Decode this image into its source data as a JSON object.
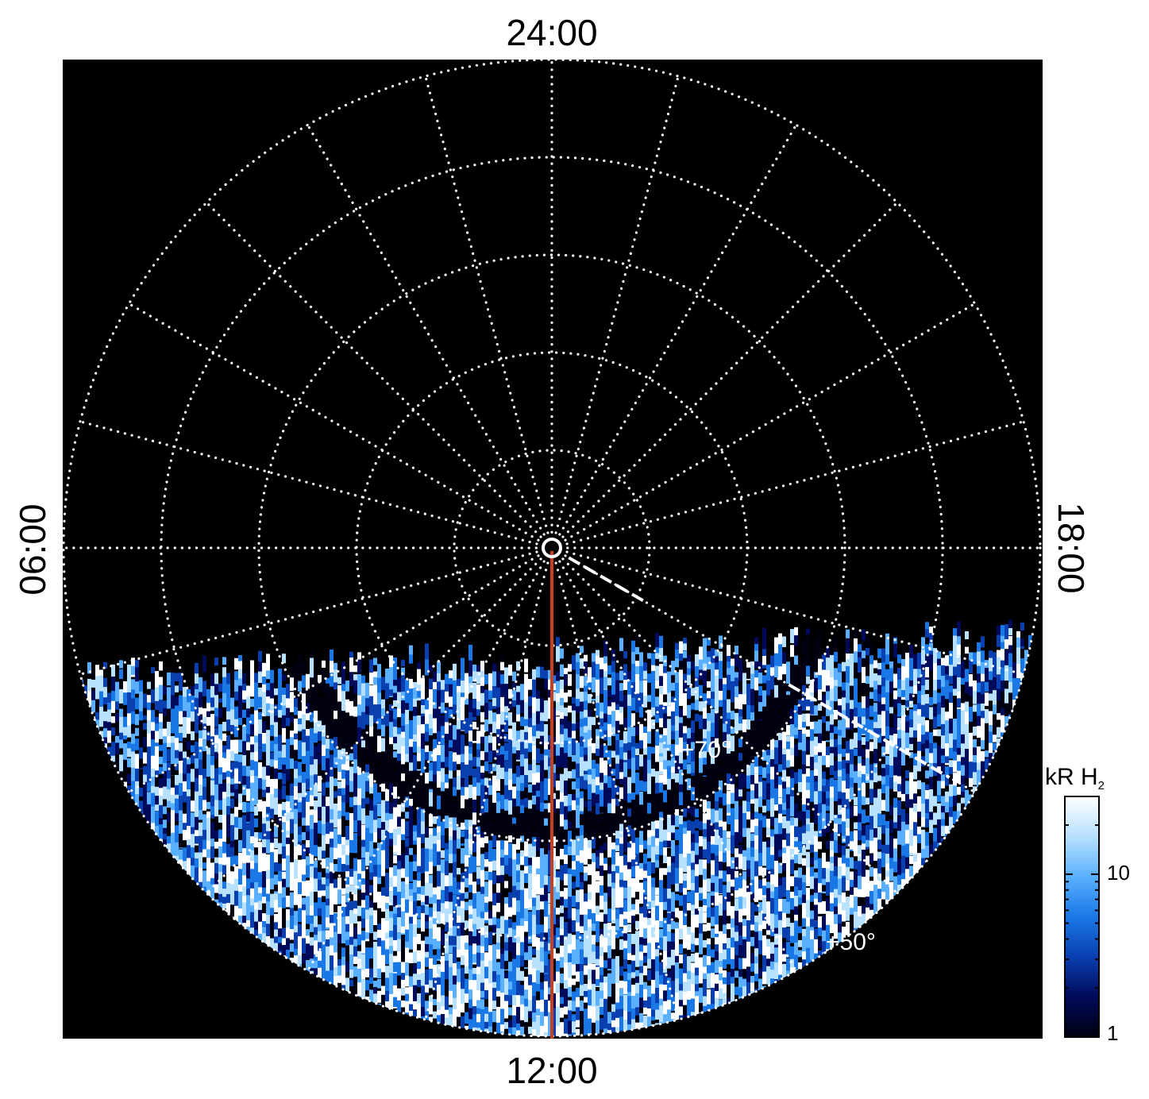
{
  "polar_plot": {
    "local_time_labels": {
      "top": "24:00",
      "bottom": "12:00",
      "left": "06:00",
      "right": "18:00"
    },
    "latitude_labels": [
      {
        "text": "+70°",
        "latitude": 70
      },
      {
        "text": "+50°",
        "latitude": 50
      }
    ],
    "latitude_circles": [
      80,
      70,
      60,
      50,
      40
    ],
    "meridian_hours": [
      0,
      1,
      2,
      3,
      4,
      5,
      6,
      7,
      8,
      9,
      10,
      11,
      12,
      13,
      14,
      15,
      16,
      17,
      18,
      19,
      20,
      21,
      22,
      23
    ],
    "grid_color": "#ffffff",
    "background_color": "#000000",
    "noon_line_color": "#c8401e",
    "dashed_meridian_hour": 16
  },
  "colorbar": {
    "title_main": "kR H",
    "title_sub": "2",
    "scale": "log",
    "range": [
      1,
      30
    ],
    "tick_labels": [
      {
        "value": 1,
        "text": "1"
      },
      {
        "value": 10,
        "text": "10"
      }
    ],
    "colors": [
      "#000010",
      "#000a5a",
      "#0a3fb0",
      "#1a78e6",
      "#5ab0ff",
      "#b8e0ff",
      "#ffffff"
    ]
  }
}
